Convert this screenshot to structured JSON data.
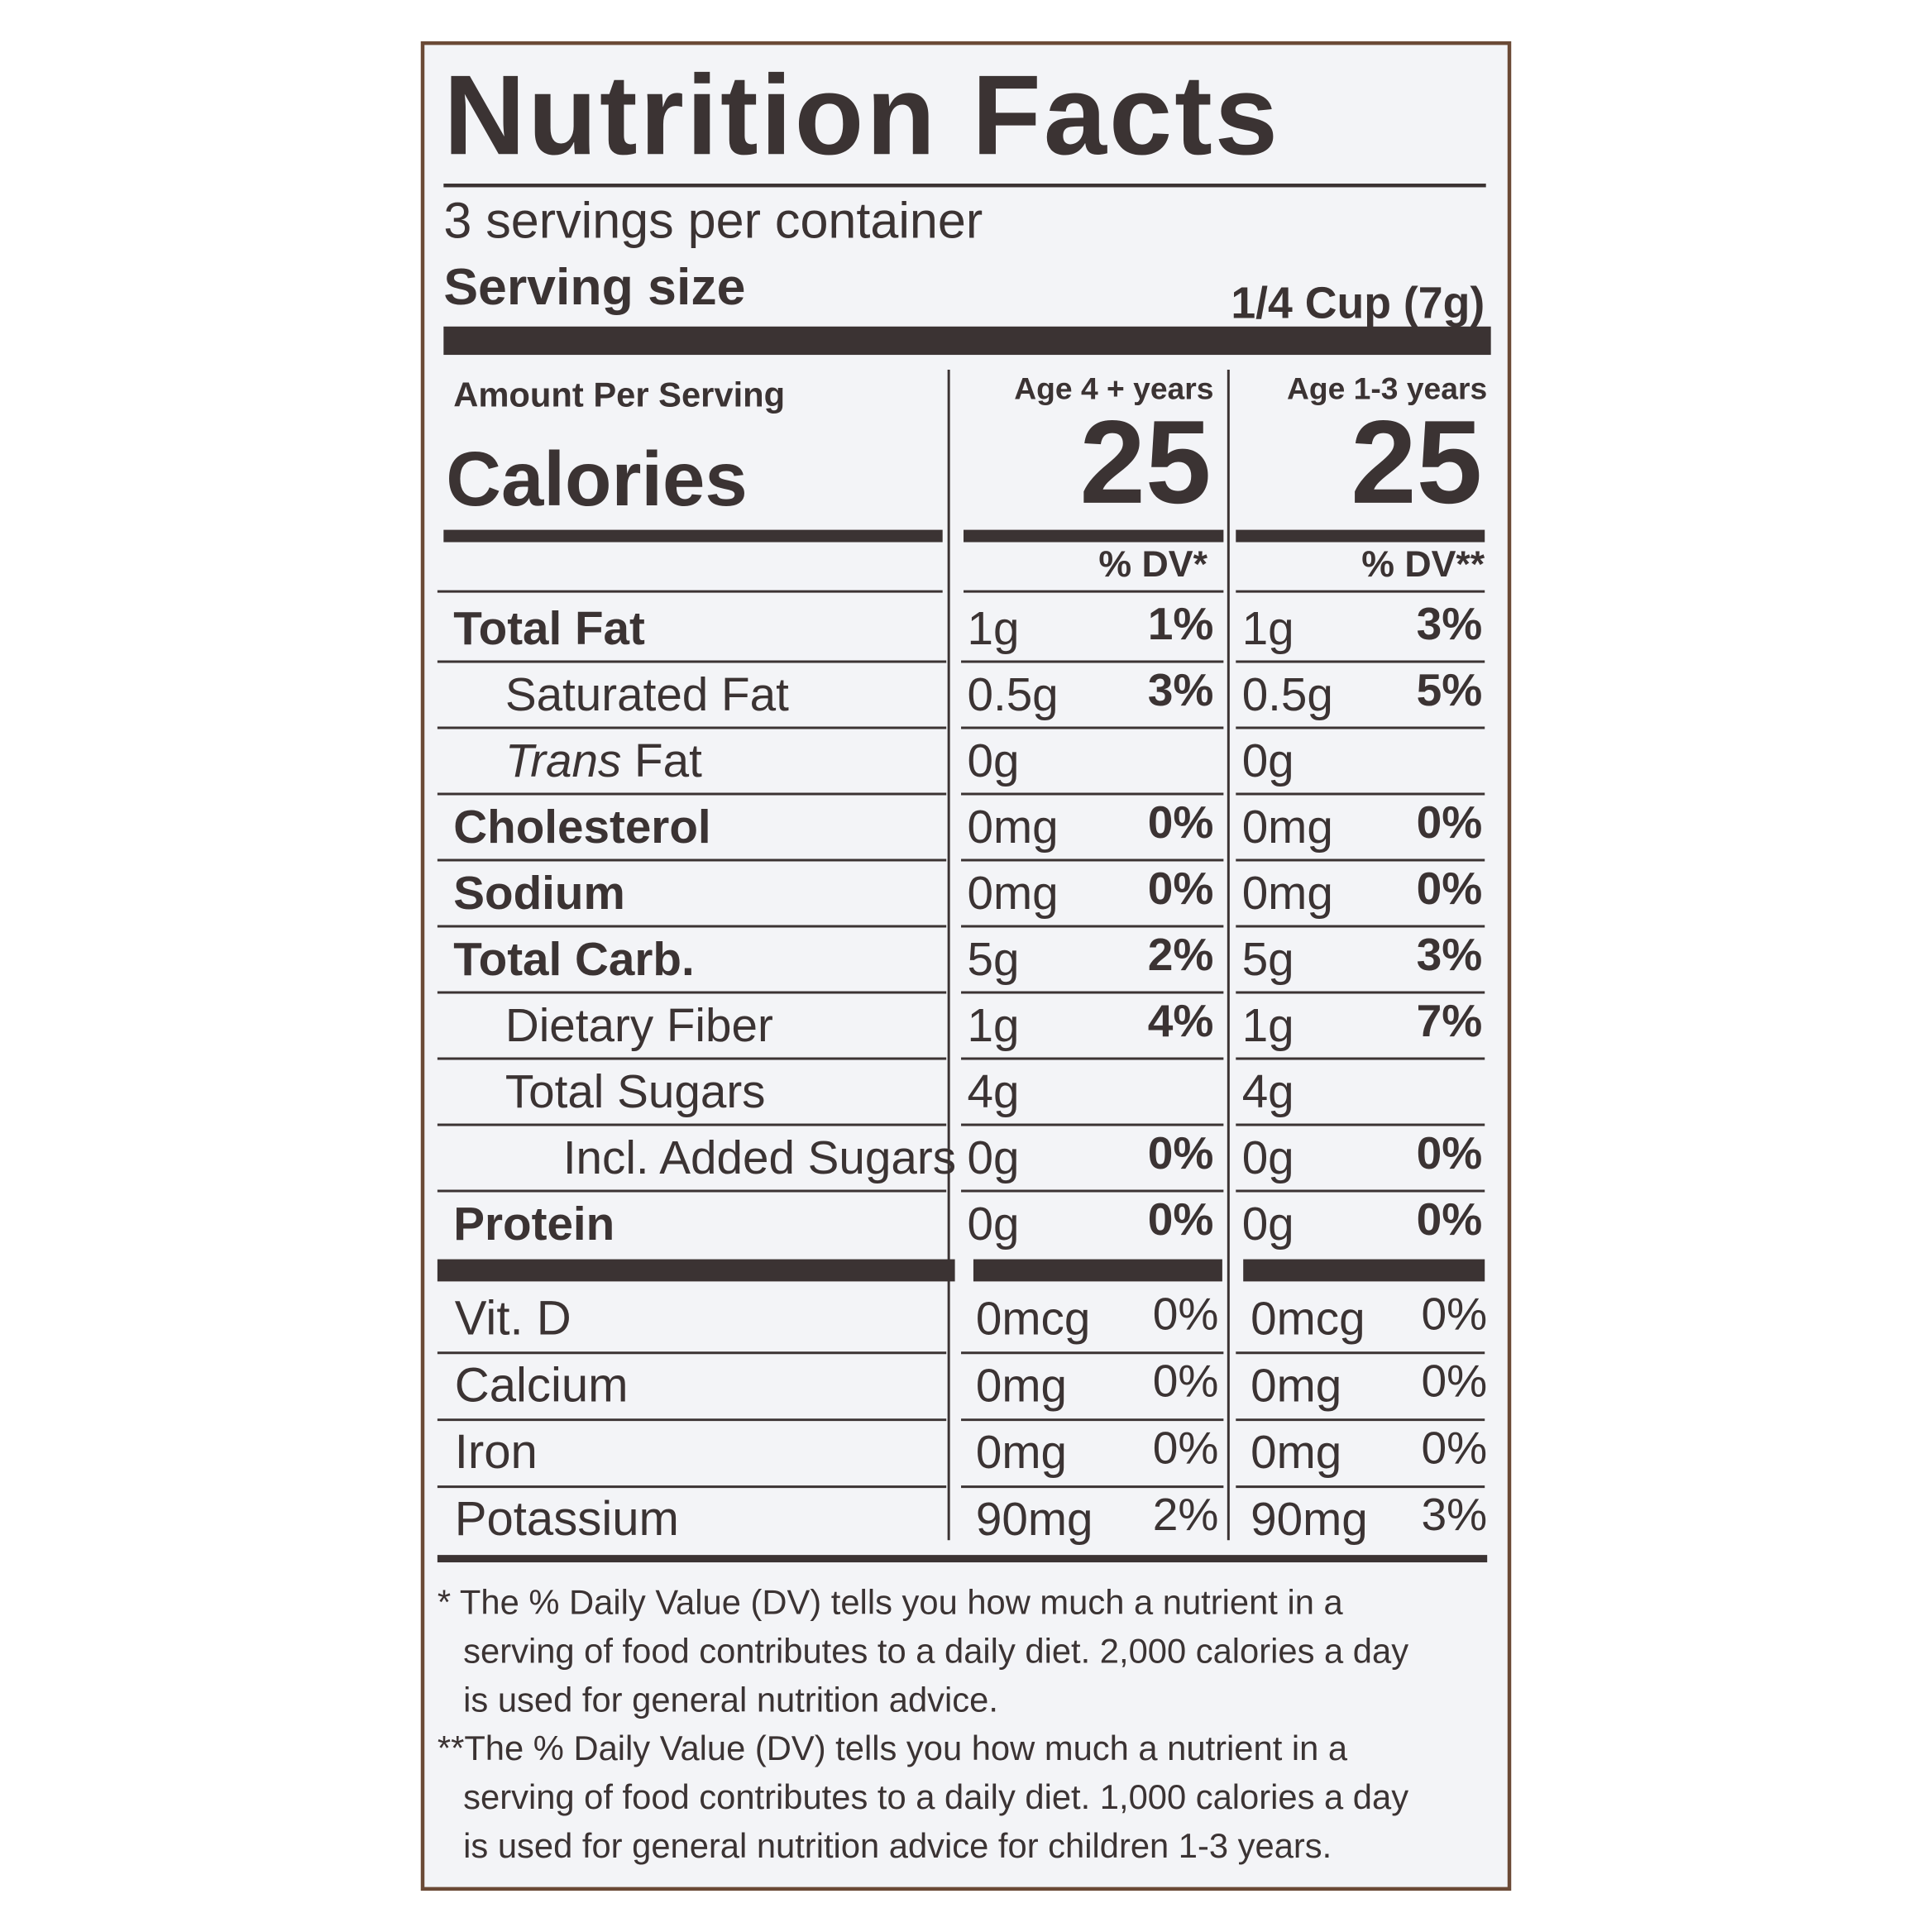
{
  "title": "Nutrition Facts",
  "servings": "3 servings per container",
  "serving_size": {
    "label": "Serving size",
    "value": "1/4 Cup (7g)"
  },
  "amount_per_serving": "Amount Per Serving",
  "calories_label": "Calories",
  "columns": [
    {
      "age": "Age 4 + years",
      "calories": "25",
      "dv_header": "% DV*"
    },
    {
      "age": "Age 1-3 years",
      "calories": "25",
      "dv_header": "% DV**"
    }
  ],
  "rows": [
    {
      "label": "Total Fat",
      "bold": true,
      "indent": 0,
      "values": [
        [
          "1g",
          "1%"
        ],
        [
          "1g",
          "3%"
        ]
      ]
    },
    {
      "label": "Saturated Fat",
      "bold": false,
      "indent": 1,
      "values": [
        [
          "0.5g",
          "3%"
        ],
        [
          "0.5g",
          "5%"
        ]
      ]
    },
    {
      "label_italic": "Trans",
      "label": " Fat",
      "bold": false,
      "indent": 1,
      "values": [
        [
          "0g"
        ],
        [
          "0g"
        ]
      ]
    },
    {
      "label": "Cholesterol",
      "bold": true,
      "indent": 0,
      "values": [
        [
          "0mg",
          "0%"
        ],
        [
          "0mg",
          "0%"
        ]
      ]
    },
    {
      "label": "Sodium",
      "bold": true,
      "indent": 0,
      "values": [
        [
          "0mg",
          "0%"
        ],
        [
          "0mg",
          "0%"
        ]
      ]
    },
    {
      "label": "Total Carb.",
      "bold": true,
      "indent": 0,
      "values": [
        [
          "5g",
          "2%"
        ],
        [
          "5g",
          "3%"
        ]
      ]
    },
    {
      "label": "Dietary Fiber",
      "bold": false,
      "indent": 1,
      "values": [
        [
          "1g",
          "4%"
        ],
        [
          "1g",
          "7%"
        ]
      ]
    },
    {
      "label": "Total Sugars",
      "bold": false,
      "indent": 1,
      "values": [
        [
          "4g"
        ],
        [
          "4g"
        ]
      ]
    },
    {
      "label": "Incl. Added Sugars",
      "bold": false,
      "indent": 2,
      "values": [
        [
          "0g",
          "0%"
        ],
        [
          "0g",
          "0%"
        ]
      ]
    },
    {
      "label": "Protein",
      "bold": true,
      "indent": 0,
      "values": [
        [
          "0g",
          "0%"
        ],
        [
          "0g",
          "0%"
        ]
      ]
    }
  ],
  "vitamins": [
    {
      "label": "Vit. D",
      "values": [
        [
          "0mcg",
          "0%"
        ],
        [
          "0mcg",
          "0%"
        ]
      ]
    },
    {
      "label": "Calcium",
      "values": [
        [
          "0mg",
          "0%"
        ],
        [
          "0mg",
          "0%"
        ]
      ]
    },
    {
      "label": "Iron",
      "values": [
        [
          "0mg",
          "0%"
        ],
        [
          "0mg",
          "0%"
        ]
      ]
    },
    {
      "label": "Potassium",
      "values": [
        [
          "90mg",
          "2%"
        ],
        [
          "90mg",
          "3%"
        ]
      ]
    }
  ],
  "footnotes": [
    [
      "* The % Daily Value (DV) tells you how much a nutrient in a",
      "serving of food contributes to a daily diet. 2,000 calories a day",
      "is used for general nutrition advice."
    ],
    [
      "**The % Daily Value (DV) tells you how much a nutrient in a",
      "serving of food contributes to a daily diet. 1,000 calories a day",
      "is used for general nutrition advice for children 1-3 years."
    ]
  ]
}
